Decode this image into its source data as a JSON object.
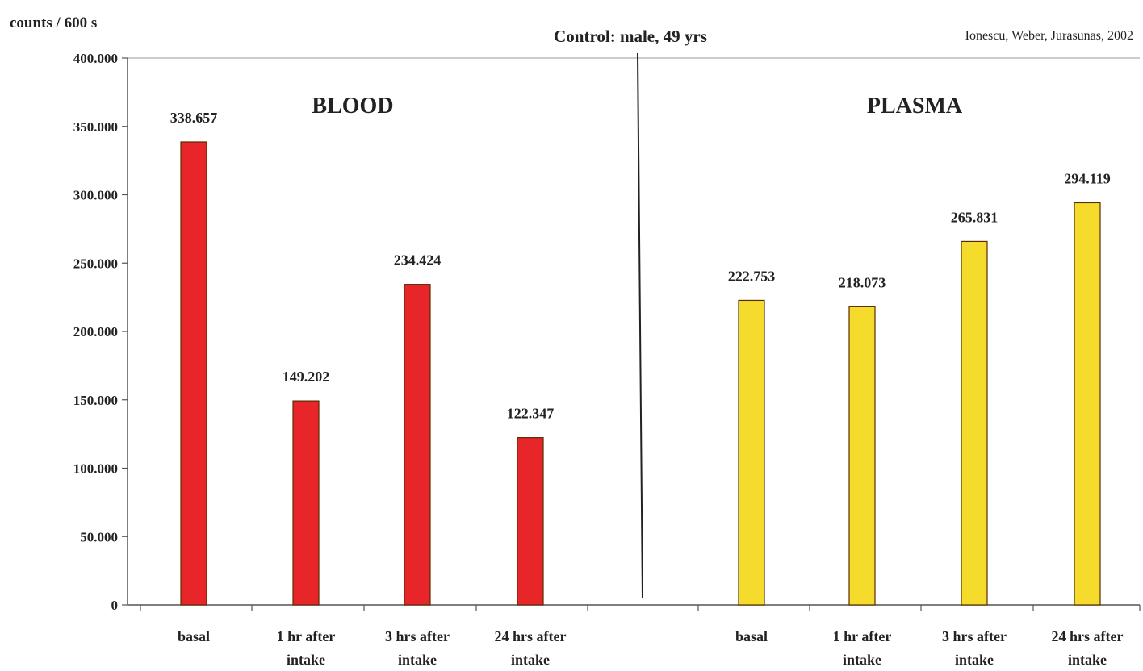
{
  "chart_data": {
    "type": "bar",
    "title": "Control: male, 49 yrs",
    "credit": "Ionescu, Weber, Jurasunas, 2002",
    "ylabel": "counts / 600 s",
    "ylim": [
      0,
      400000
    ],
    "yticks": [
      0,
      50000,
      100000,
      150000,
      200000,
      250000,
      300000,
      350000,
      400000
    ],
    "ytick_labels": [
      "0",
      "50.000",
      "100.000",
      "150.000",
      "200.000",
      "250.000",
      "300.000",
      "350.000",
      "400.000"
    ],
    "grid": false,
    "legend": "none",
    "panels": [
      {
        "name": "BLOOD",
        "color": "#e8262a",
        "categories": [
          [
            "basal"
          ],
          [
            "1 hr after",
            "intake"
          ],
          [
            "3 hrs after",
            "intake"
          ],
          [
            "24 hrs after",
            "intake"
          ]
        ],
        "values": [
          338657,
          149202,
          234424,
          122347
        ],
        "value_labels": [
          "338.657",
          "149.202",
          "234.424",
          "122.347"
        ]
      },
      {
        "name": "PLASMA",
        "color": "#f5dc2c",
        "categories": [
          [
            "basal"
          ],
          [
            "1 hr after",
            "intake"
          ],
          [
            "3 hrs after",
            "intake"
          ],
          [
            "24 hrs after",
            "intake"
          ]
        ],
        "values": [
          222753,
          218073,
          265831,
          294119
        ],
        "value_labels": [
          "222.753",
          "218.073",
          "265.831",
          "294.119"
        ]
      }
    ]
  }
}
